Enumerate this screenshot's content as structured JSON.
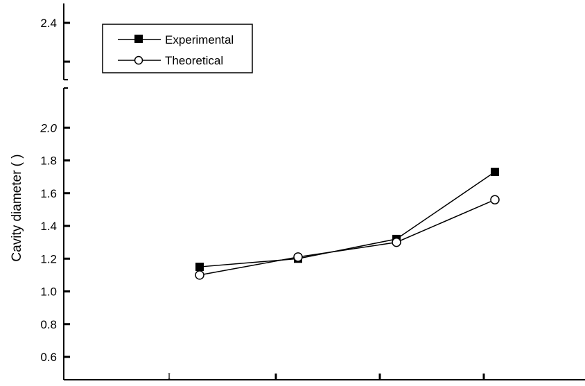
{
  "chart_data": {
    "type": "line",
    "title": "",
    "xlabel": "",
    "ylabel": "Cavity diameter (    )",
    "x": [
      1,
      2,
      3,
      4
    ],
    "x_tick_labels": [
      "I",
      "",
      "",
      ""
    ],
    "ylim": [
      0.5,
      2.5
    ],
    "y_axis_break": [
      2.05,
      2.2
    ],
    "y_tick_labels": [
      {
        "value": 0.6,
        "text": "0.6",
        "italic": false
      },
      {
        "value": 0.8,
        "text": "0.8",
        "italic": false
      },
      {
        "value": 1.0,
        "text": "1.0",
        "italic": false
      },
      {
        "value": 1.2,
        "text": "1.2",
        "italic": false
      },
      {
        "value": 1.4,
        "text": "1.4",
        "italic": false
      },
      {
        "value": 1.6,
        "text": "1.6",
        "italic": false
      },
      {
        "value": 1.8,
        "text": "1.8",
        "italic": false
      },
      {
        "value": 2.0,
        "text": "2.0",
        "italic": true
      },
      {
        "value": 2.4,
        "text": "2.4",
        "italic": false
      }
    ],
    "series": [
      {
        "name": "Experimental",
        "marker": "filled-square",
        "values": [
          1.15,
          1.2,
          1.32,
          1.73
        ]
      },
      {
        "name": "Theoretical",
        "marker": "open-circle",
        "values": [
          1.1,
          1.21,
          1.3,
          1.56
        ]
      }
    ],
    "legend": {
      "position": "top-left"
    },
    "grid": false,
    "colors": {
      "line": "#000000",
      "background": "#ffffff"
    }
  }
}
